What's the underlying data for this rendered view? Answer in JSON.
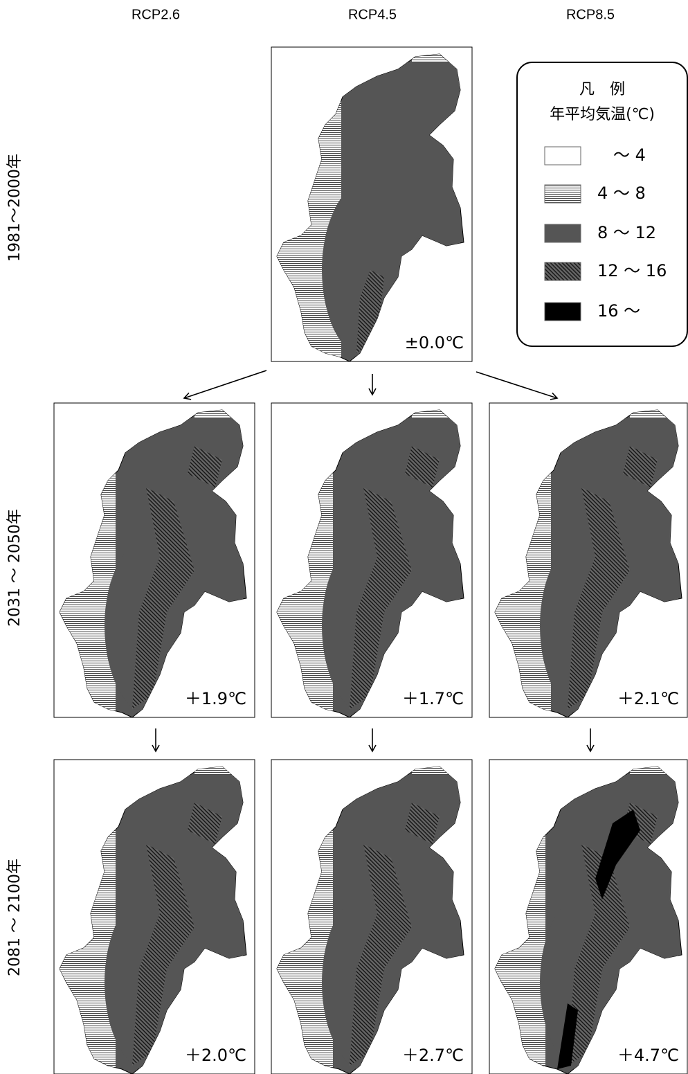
{
  "columns": [
    "RCP2.6",
    "RCP4.5",
    "RCP8.5"
  ],
  "rows": [
    "1981～2000年",
    "2031 ～ 2050年",
    "2081 ～ 2100年"
  ],
  "legend": {
    "title": "凡　例",
    "subtitle": "年平均気温(℃)",
    "items": [
      "～ 4",
      "4 ～ 8",
      "8 ～ 12",
      "12 ～ 16",
      "16 ～"
    ]
  },
  "panels": [
    {
      "label": "±0.0℃"
    },
    {
      "label": "＋1.9℃"
    },
    {
      "label": "＋1.7℃"
    },
    {
      "label": "＋2.1℃"
    },
    {
      "label": "＋2.0℃"
    },
    {
      "label": "＋2.7℃"
    },
    {
      "label": "＋4.7℃"
    }
  ]
}
